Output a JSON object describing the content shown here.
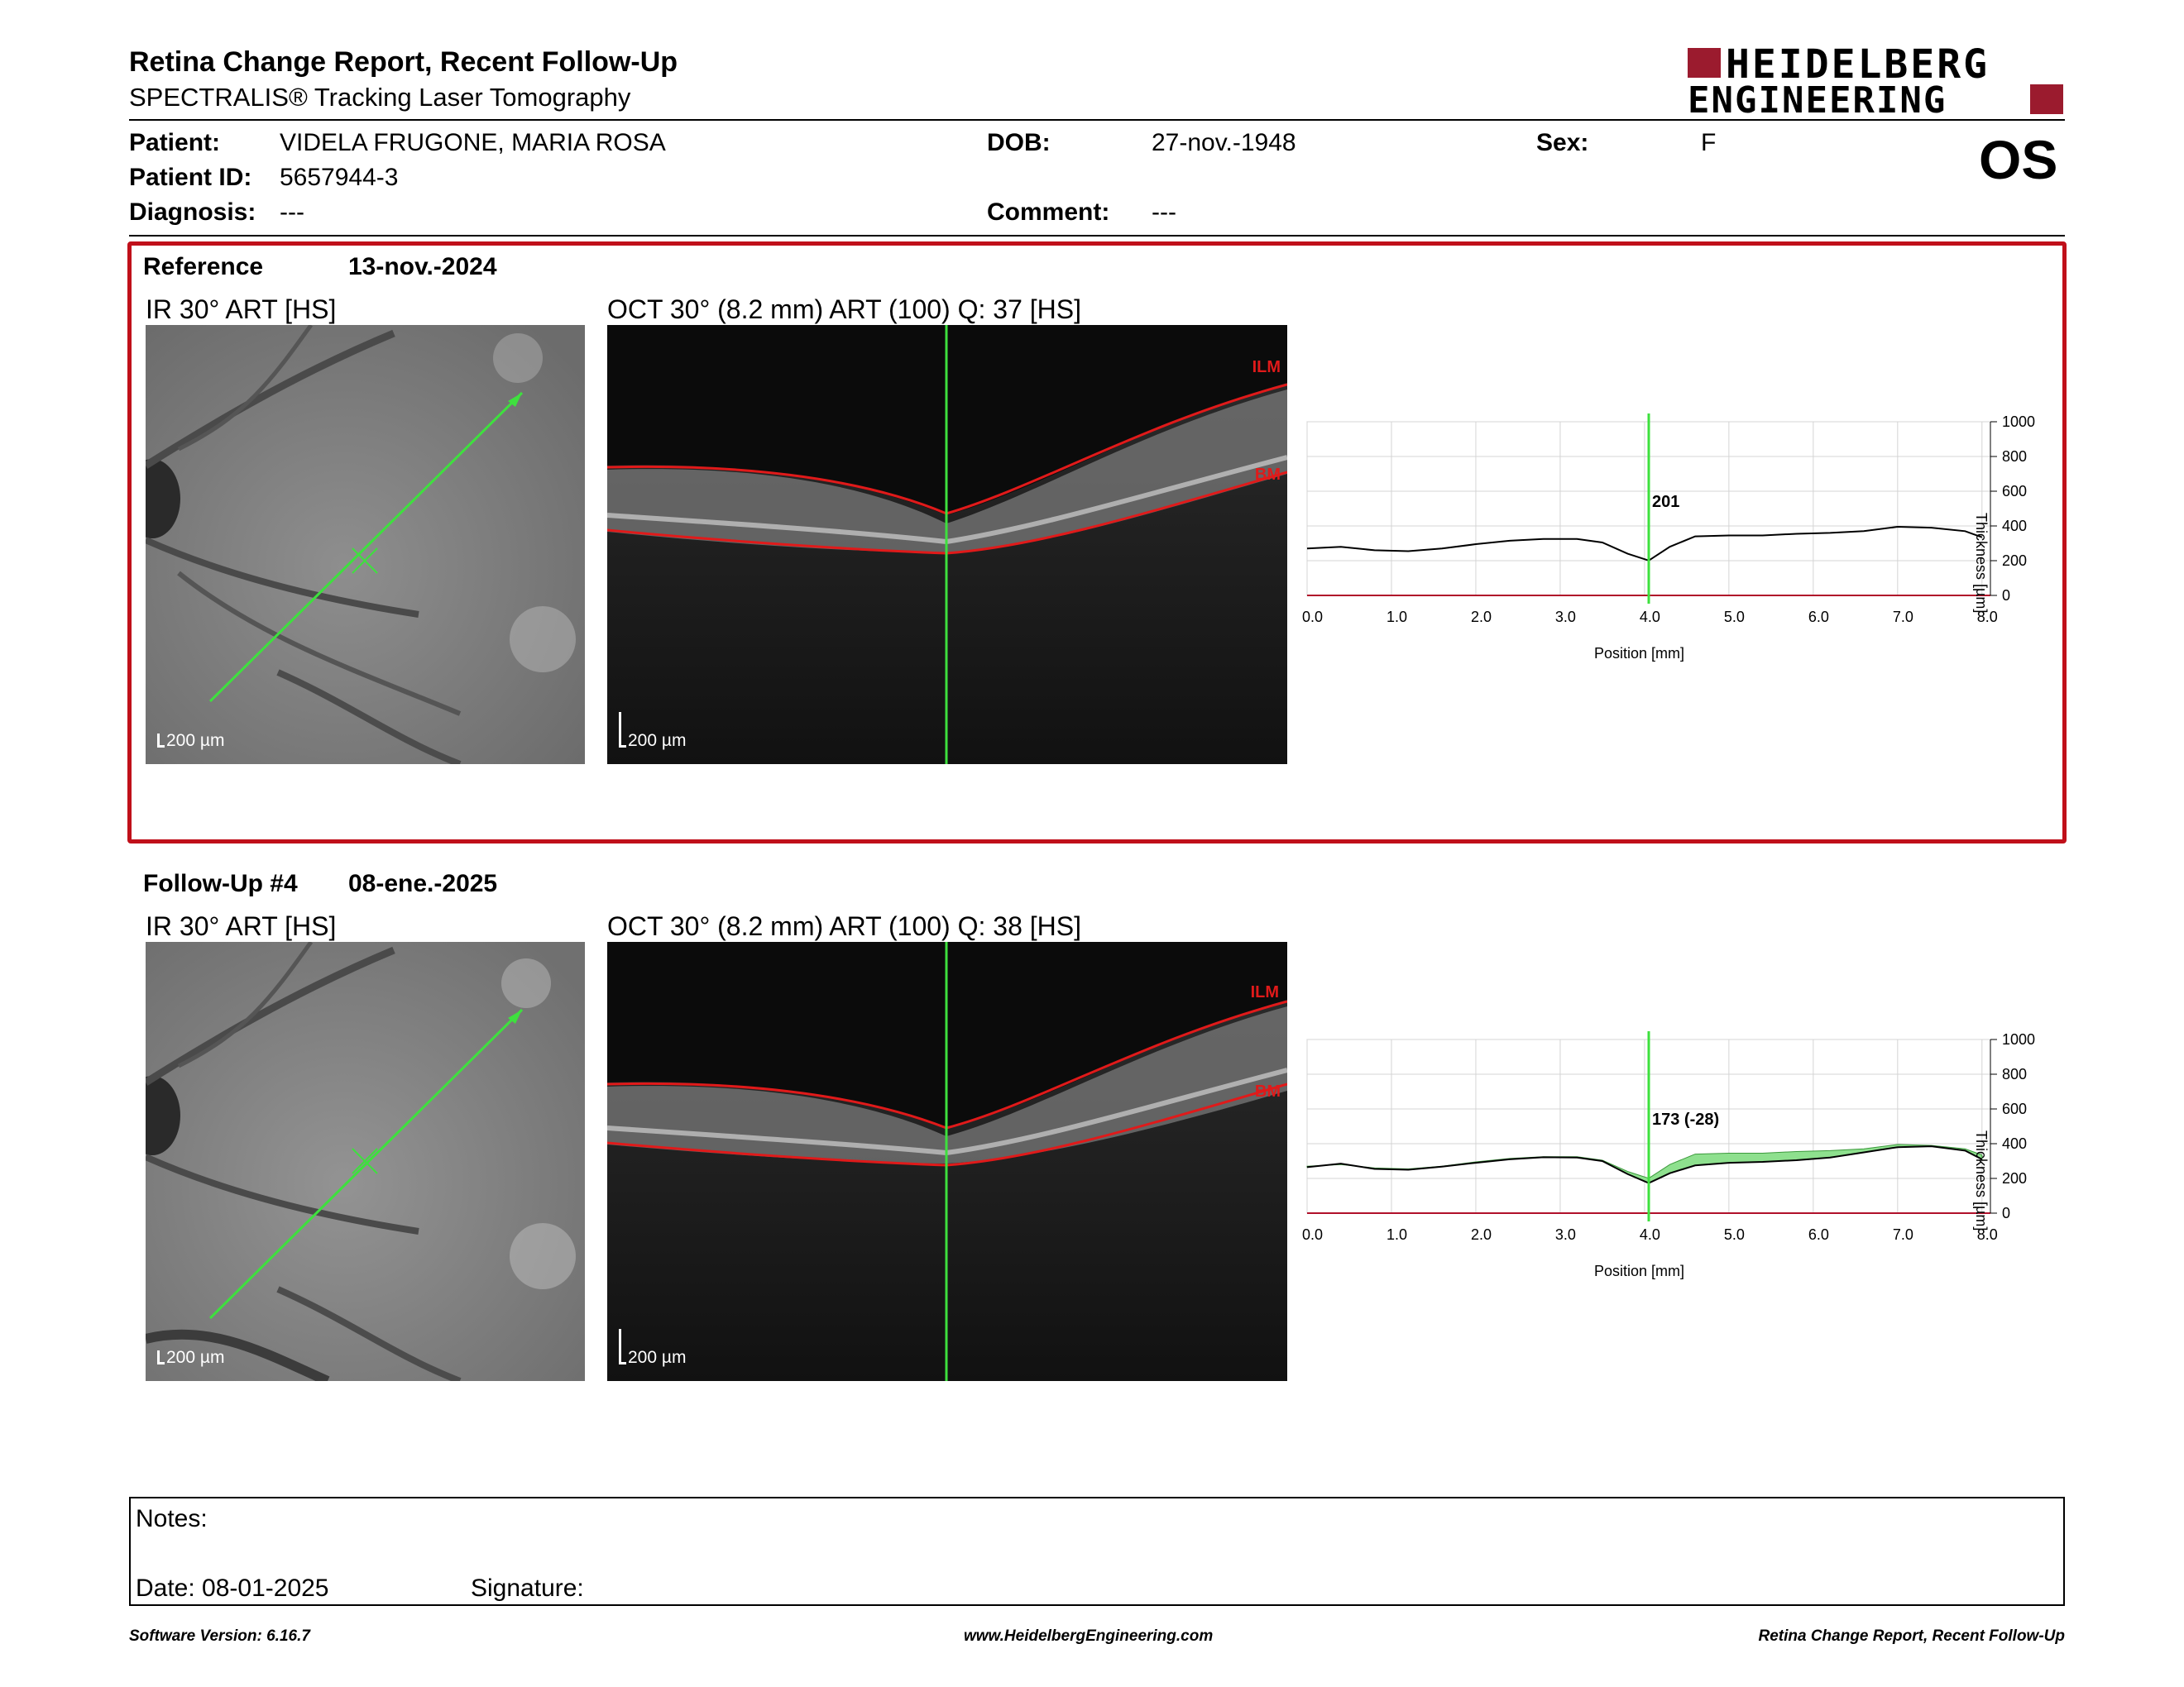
{
  "header": {
    "title": "Retina Change Report, Recent Follow-Up",
    "subtitle": "SPECTRALIS® Tracking Laser Tomography",
    "logo_line1": "HEIDELBERG",
    "logo_line2": "ENGINEERING",
    "eye": "OS"
  },
  "patient": {
    "patient_label": "Patient:",
    "patient_value": "VIDELA FRUGONE, MARIA ROSA",
    "dob_label": "DOB:",
    "dob_value": "27-nov.-1948",
    "sex_label": "Sex:",
    "sex_value": "F",
    "id_label": "Patient ID:",
    "id_value": "5657944-3",
    "diagnosis_label": "Diagnosis:",
    "diagnosis_value": "---",
    "comment_label": "Comment:",
    "comment_value": "---"
  },
  "reference": {
    "label": "Reference",
    "date": "13-nov.-2024",
    "ir_title": "IR 30° ART [HS]",
    "oct_title": "OCT 30° (8.2 mm) ART (100) Q: 37 [HS]",
    "scale": "200 µm",
    "ilm": "ILM",
    "bm": "BM",
    "marker_label": "201"
  },
  "followup": {
    "label": "Follow-Up #4",
    "date": "08-ene.-2025",
    "ir_title": "IR 30° ART [HS]",
    "oct_title": "OCT 30° (8.2 mm) ART (100) Q: 38 [HS]",
    "scale": "200 µm",
    "ilm": "ILM",
    "bm": "BM",
    "marker_label": "173 (-28)"
  },
  "chart_data": [
    {
      "type": "line",
      "xlabel": "Position [mm]",
      "ylabel": "Thickness [µm]",
      "xlim": [
        0,
        8.1
      ],
      "ylim": [
        0,
        1000
      ],
      "x_ticks": [
        "0.0",
        "1.0",
        "2.0",
        "3.0",
        "4.0",
        "5.0",
        "6.0",
        "7.0",
        "8.0"
      ],
      "y_ticks": [
        "0",
        "200",
        "400",
        "600",
        "800",
        "1000"
      ],
      "marker_x": 4.05,
      "series": [
        {
          "x": [
            0,
            0.4,
            0.8,
            1.2,
            1.6,
            2.0,
            2.4,
            2.8,
            3.2,
            3.5,
            3.8,
            4.05,
            4.3,
            4.6,
            5.0,
            5.4,
            5.8,
            6.2,
            6.6,
            7.0,
            7.4,
            7.8,
            8.0
          ],
          "values": [
            270,
            280,
            260,
            255,
            270,
            295,
            315,
            325,
            325,
            305,
            240,
            201,
            280,
            340,
            345,
            345,
            355,
            360,
            370,
            395,
            390,
            370,
            335
          ]
        }
      ]
    },
    {
      "type": "line",
      "xlabel": "Position [mm]",
      "ylabel": "Thickness [µm]",
      "xlim": [
        0,
        8.1
      ],
      "ylim": [
        0,
        1000
      ],
      "x_ticks": [
        "0.0",
        "1.0",
        "2.0",
        "3.0",
        "4.0",
        "5.0",
        "6.0",
        "7.0",
        "8.0"
      ],
      "y_ticks": [
        "0",
        "200",
        "400",
        "600",
        "800",
        "1000"
      ],
      "marker_x": 4.05,
      "series": [
        {
          "x": [
            0,
            0.4,
            0.8,
            1.2,
            1.6,
            2.0,
            2.4,
            2.8,
            3.2,
            3.5,
            3.8,
            4.05,
            4.3,
            4.6,
            5.0,
            5.4,
            5.8,
            6.2,
            6.6,
            7.0,
            7.4,
            7.8,
            8.0
          ],
          "values": [
            270,
            280,
            260,
            255,
            270,
            295,
            315,
            325,
            325,
            305,
            240,
            201,
            280,
            340,
            345,
            345,
            355,
            360,
            370,
            395,
            390,
            370,
            335
          ]
        },
        {
          "x": [
            0,
            0.4,
            0.8,
            1.2,
            1.6,
            2.0,
            2.4,
            2.8,
            3.2,
            3.5,
            3.8,
            4.05,
            4.3,
            4.6,
            5.0,
            5.4,
            5.8,
            6.2,
            6.6,
            7.0,
            7.4,
            7.8,
            8.0
          ],
          "values": [
            265,
            285,
            255,
            250,
            268,
            290,
            310,
            322,
            320,
            300,
            225,
            173,
            230,
            275,
            290,
            295,
            305,
            320,
            350,
            380,
            385,
            360,
            310
          ]
        }
      ]
    }
  ],
  "notes": {
    "notes_label": "Notes:",
    "date_label": "Date: 08-01-2025",
    "signature_label": "Signature:"
  },
  "footer": {
    "version": "Software Version: 6.16.7",
    "website": "www.HeidelbergEngineering.com",
    "report": "Retina Change Report, Recent Follow-Up"
  }
}
